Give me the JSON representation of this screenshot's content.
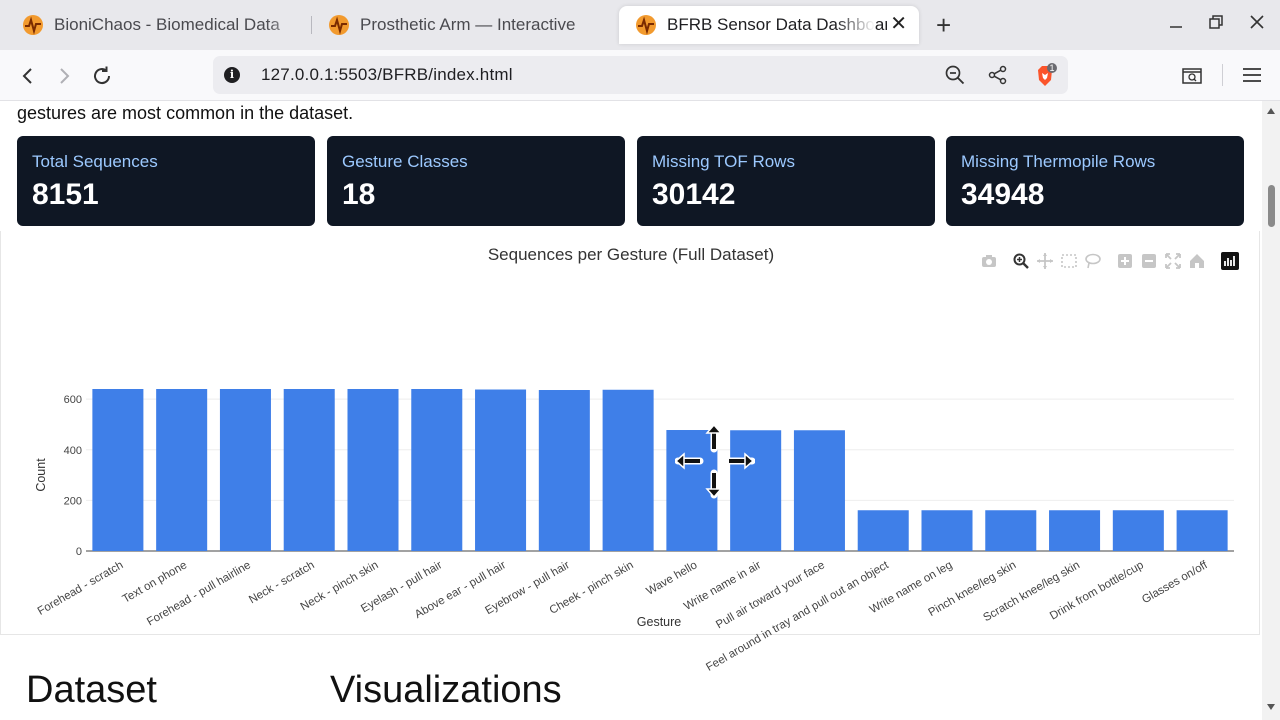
{
  "browser": {
    "tabs": [
      {
        "title": "BioniChaos - Biomedical Data",
        "active": false
      },
      {
        "title": "Prosthetic Arm — Interactive",
        "active": false
      },
      {
        "title": "BFRB Sensor Data Dashboard",
        "active": true
      }
    ],
    "url": "127.0.0.1:5503/BFRB/index.html",
    "shield_badge": "1"
  },
  "page": {
    "intro_text": "gestures are most common in the dataset.",
    "stats": [
      {
        "label": "Total Sequences",
        "value": "8151"
      },
      {
        "label": "Gesture Classes",
        "value": "18"
      },
      {
        "label": "Missing TOF Rows",
        "value": "30142"
      },
      {
        "label": "Missing Thermopile Rows",
        "value": "34948"
      }
    ],
    "sections": {
      "dataset": "Dataset",
      "visualizations": "Visualizations"
    }
  },
  "colors": {
    "bar": "#3f7fe8",
    "card_bg": "#0f1724",
    "card_label": "#9cc9ff"
  },
  "chart_data": {
    "type": "bar",
    "title": "Sequences per Gesture (Full Dataset)",
    "xlabel": "Gesture",
    "ylabel": "Count",
    "ylim": [
      0,
      640
    ],
    "yticks": [
      0,
      200,
      400,
      600
    ],
    "categories": [
      "Forehead - scratch",
      "Text on phone",
      "Forehead - pull hairline",
      "Neck - scratch",
      "Neck - pinch skin",
      "Eyelash - pull hair",
      "Above ear - pull hair",
      "Eyebrow - pull hair",
      "Cheek - pinch skin",
      "Wave hello",
      "Write name in air",
      "Pull air toward your face",
      "Feel around in tray and pull out an object",
      "Write name on leg",
      "Pinch knee/leg skin",
      "Scratch knee/leg skin",
      "Drink from bottle/cup",
      "Glasses on/off"
    ],
    "values": [
      640,
      640,
      640,
      640,
      640,
      640,
      638,
      636,
      637,
      478,
      477,
      477,
      161,
      161,
      161,
      161,
      161,
      161
    ],
    "grid": true,
    "legend": "none"
  },
  "chart_toolbar": [
    "camera-icon",
    "zoom-icon",
    "pan-icon",
    "box-select-icon",
    "lasso-icon",
    "zoom-in-icon",
    "zoom-out-icon",
    "autoscale-icon",
    "reset-axes-icon",
    "plotly-logo-icon"
  ]
}
